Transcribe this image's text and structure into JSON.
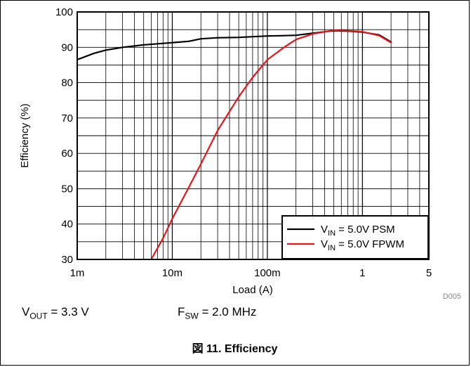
{
  "chart_data": {
    "type": "line",
    "x_scale": "log",
    "xlabel": "Load (A)",
    "ylabel": "Efficiency (%)",
    "xlim": [
      0.001,
      5
    ],
    "ylim": [
      30,
      100
    ],
    "x_ticks": [
      {
        "value": 0.001,
        "label": "1m"
      },
      {
        "value": 0.01,
        "label": "10m"
      },
      {
        "value": 0.1,
        "label": "100m"
      },
      {
        "value": 1,
        "label": "1"
      },
      {
        "value": 5,
        "label": "5"
      }
    ],
    "y_ticks": [
      30,
      40,
      50,
      60,
      70,
      80,
      90,
      100
    ],
    "grid": true,
    "legend_position": "bottom-right",
    "series": [
      {
        "name_main": "V",
        "name_sub": "IN",
        "name_rest": " = 5.0V PSM",
        "color": "#000000",
        "points": [
          [
            0.001,
            86.5
          ],
          [
            0.0015,
            88.3
          ],
          [
            0.002,
            89.2
          ],
          [
            0.003,
            90.0
          ],
          [
            0.005,
            90.7
          ],
          [
            0.007,
            91.0
          ],
          [
            0.01,
            91.3
          ],
          [
            0.015,
            91.7
          ],
          [
            0.02,
            92.4
          ],
          [
            0.03,
            92.7
          ],
          [
            0.05,
            92.8
          ],
          [
            0.07,
            93.0
          ],
          [
            0.1,
            93.2
          ],
          [
            0.15,
            93.3
          ],
          [
            0.2,
            93.4
          ],
          [
            0.3,
            94.0
          ],
          [
            0.5,
            94.7
          ],
          [
            0.7,
            94.6
          ],
          [
            1,
            94.3
          ],
          [
            1.5,
            93.5
          ],
          [
            2,
            91.5
          ]
        ]
      },
      {
        "name_main": "V",
        "name_sub": "IN",
        "name_rest": " = 5.0V FPWM",
        "color": "#e8141b",
        "points": [
          [
            0.006,
            30.0
          ],
          [
            0.008,
            36.0
          ],
          [
            0.01,
            41.5
          ],
          [
            0.015,
            50.5
          ],
          [
            0.02,
            57.0
          ],
          [
            0.03,
            66.5
          ],
          [
            0.05,
            76.0
          ],
          [
            0.07,
            81.5
          ],
          [
            0.1,
            86.5
          ],
          [
            0.15,
            90.0
          ],
          [
            0.2,
            92.2
          ],
          [
            0.3,
            93.8
          ],
          [
            0.5,
            94.8
          ],
          [
            0.7,
            94.7
          ],
          [
            1,
            94.4
          ],
          [
            1.5,
            93.3
          ],
          [
            2,
            91.3
          ]
        ]
      }
    ],
    "watermark": "D005"
  },
  "conditions": [
    {
      "main": "V",
      "sub": "OUT",
      "rest": " = 3.3 V"
    },
    {
      "main": "F",
      "sub": "SW",
      "rest": " = 2.0 MHz"
    }
  ],
  "caption": "図 11. Efficiency"
}
